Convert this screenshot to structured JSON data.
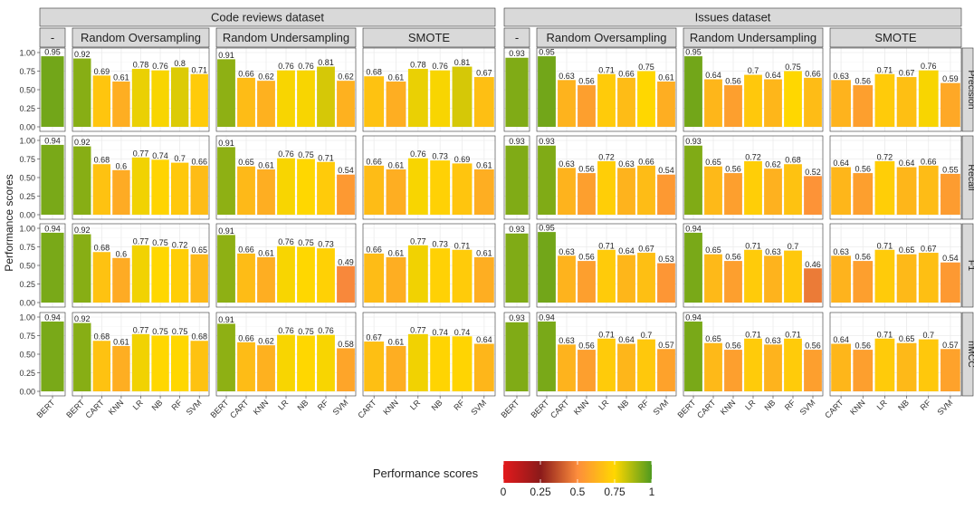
{
  "chart_data": {
    "type": "bar",
    "ylabel": "Performance scores",
    "ylim": [
      0,
      1
    ],
    "yticks": [
      "0.00",
      "0.25",
      "0.50",
      "0.75",
      "1.00"
    ],
    "yticks_values": [
      0,
      0.25,
      0.5,
      0.75,
      1
    ],
    "datasets": [
      "Code reviews dataset",
      "Issues dataset"
    ],
    "methods": [
      "-",
      "Random Oversampling",
      "Random Undersampling",
      "SMOTE"
    ],
    "metrics": [
      "Precision",
      "Recall",
      "F1",
      "nMCC"
    ],
    "method_models": [
      [
        "BERT"
      ],
      [
        "BERT",
        "CART",
        "KNN",
        "LR",
        "NB",
        "RF",
        "SVM"
      ],
      [
        "BERT",
        "CART",
        "KNN",
        "LR",
        "NB",
        "RF",
        "SVM"
      ],
      [
        "CART",
        "KNN",
        "LR",
        "NB",
        "RF",
        "SVM"
      ]
    ],
    "values": {
      "Code reviews dataset": {
        "Precision": [
          [
            0.95
          ],
          [
            0.92,
            0.69,
            0.61,
            0.78,
            0.76,
            0.8,
            0.71
          ],
          [
            0.91,
            0.66,
            0.62,
            0.76,
            0.76,
            0.81,
            0.62
          ],
          [
            0.68,
            0.61,
            0.78,
            0.76,
            0.81,
            0.67
          ]
        ],
        "Recall": [
          [
            0.94
          ],
          [
            0.92,
            0.68,
            0.6,
            0.77,
            0.74,
            0.7,
            0.66
          ],
          [
            0.91,
            0.65,
            0.61,
            0.76,
            0.75,
            0.71,
            0.54
          ],
          [
            0.66,
            0.61,
            0.76,
            0.73,
            0.69,
            0.61
          ]
        ],
        "F1": [
          [
            0.94
          ],
          [
            0.92,
            0.68,
            0.6,
            0.77,
            0.75,
            0.72,
            0.65
          ],
          [
            0.91,
            0.66,
            0.61,
            0.76,
            0.75,
            0.73,
            0.49
          ],
          [
            0.66,
            0.61,
            0.77,
            0.73,
            0.71,
            0.61
          ]
        ],
        "nMCC": [
          [
            0.94
          ],
          [
            0.92,
            0.68,
            0.61,
            0.77,
            0.75,
            0.75,
            0.68
          ],
          [
            0.91,
            0.66,
            0.62,
            0.76,
            0.75,
            0.76,
            0.58
          ],
          [
            0.67,
            0.61,
            0.77,
            0.74,
            0.74,
            0.64
          ]
        ]
      },
      "Issues dataset": {
        "Precision": [
          [
            0.93
          ],
          [
            0.95,
            0.63,
            0.56,
            0.71,
            0.66,
            0.75,
            0.61
          ],
          [
            0.95,
            0.64,
            0.56,
            0.7,
            0.64,
            0.75,
            0.66
          ],
          [
            0.63,
            0.56,
            0.71,
            0.67,
            0.76,
            0.59
          ]
        ],
        "Recall": [
          [
            0.93
          ],
          [
            0.93,
            0.63,
            0.56,
            0.72,
            0.63,
            0.66,
            0.54
          ],
          [
            0.93,
            0.65,
            0.56,
            0.72,
            0.62,
            0.68,
            0.52
          ],
          [
            0.64,
            0.56,
            0.72,
            0.64,
            0.66,
            0.55
          ]
        ],
        "F1": [
          [
            0.93
          ],
          [
            0.95,
            0.63,
            0.56,
            0.71,
            0.64,
            0.67,
            0.53
          ],
          [
            0.94,
            0.65,
            0.56,
            0.71,
            0.63,
            0.7,
            0.46
          ],
          [
            0.63,
            0.56,
            0.71,
            0.65,
            0.67,
            0.54
          ]
        ],
        "nMCC": [
          [
            0.93
          ],
          [
            0.94,
            0.63,
            0.56,
            0.71,
            0.64,
            0.7,
            0.57
          ],
          [
            0.94,
            0.65,
            0.56,
            0.71,
            0.63,
            0.71,
            0.56
          ],
          [
            0.64,
            0.56,
            0.71,
            0.65,
            0.7,
            0.57
          ]
        ]
      }
    },
    "legend": {
      "title": "Performance scores",
      "position": "bottom",
      "ticks": [
        "0",
        "0.25",
        "0.5",
        "0.75",
        "1"
      ],
      "tick_values": [
        0,
        0.25,
        0.5,
        0.75,
        1
      ]
    },
    "colors": {
      "scale": [
        "#e31a1c",
        "#8b1a1a",
        "#fd8d3c",
        "#ffd700",
        "#4f9a1f"
      ],
      "strip_fill": "#d9d9d9",
      "strip_border": "#333333",
      "panel_border": "#333333",
      "grid": "#ebebeb",
      "text": "#222222",
      "axis_text": "#333333"
    }
  }
}
